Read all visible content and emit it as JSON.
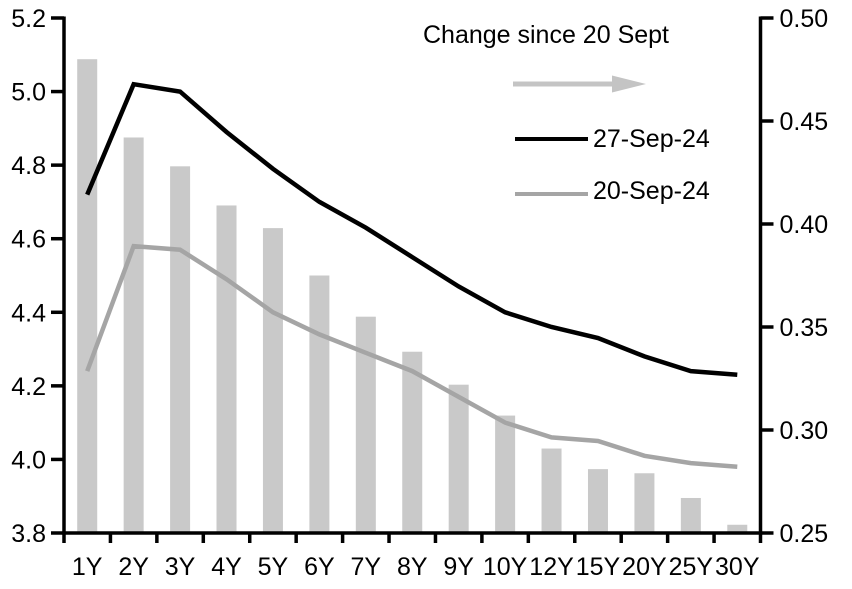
{
  "chart_data": {
    "type": "bar+line combo, dual axis",
    "categories": [
      "1Y",
      "2Y",
      "3Y",
      "4Y",
      "5Y",
      "6Y",
      "7Y",
      "8Y",
      "9Y",
      "10Y",
      "12Y",
      "15Y",
      "20Y",
      "25Y",
      "30Y"
    ],
    "series": [
      {
        "name": "Change since 20 Sept",
        "type": "bar",
        "axis": "right",
        "color": "#c9c9c9",
        "values": [
          0.48,
          0.442,
          0.428,
          0.409,
          0.398,
          0.375,
          0.355,
          0.338,
          0.322,
          0.307,
          0.291,
          0.281,
          0.279,
          0.267,
          0.254
        ]
      },
      {
        "name": "27-Sep-24",
        "type": "line",
        "axis": "left",
        "color": "#000000",
        "values": [
          4.72,
          5.02,
          5.0,
          4.89,
          4.79,
          4.7,
          4.63,
          4.55,
          4.47,
          4.4,
          4.36,
          4.33,
          4.28,
          4.24,
          4.23
        ]
      },
      {
        "name": "20-Sep-24",
        "type": "line",
        "axis": "left",
        "color": "#a5a5a5",
        "values": [
          4.24,
          4.58,
          4.57,
          4.49,
          4.4,
          4.34,
          4.29,
          4.24,
          4.17,
          4.1,
          4.06,
          4.05,
          4.01,
          3.99,
          3.98
        ]
      }
    ],
    "left_axis": {
      "min": 3.8,
      "max": 5.2,
      "tick_labels": [
        "5.2",
        "5.0",
        "4.8",
        "4.6",
        "4.4",
        "4.2",
        "4.0",
        "3.8"
      ]
    },
    "right_axis": {
      "min": 0.25,
      "max": 0.5,
      "tick_labels": [
        "0.50",
        "0.45",
        "0.40",
        "0.35",
        "0.30",
        "0.25"
      ]
    },
    "xlabel": "",
    "ylabel": "",
    "grid": false,
    "legend": {
      "position": "top-center-inside",
      "title": "Change since 20 Sept",
      "arrow_color": "#c4c4c4",
      "arrow_direction": "right",
      "entries": [
        {
          "label": "27-Sep-24",
          "color": "#000000"
        },
        {
          "label": "20-Sep-24",
          "color": "#a5a5a5"
        }
      ]
    }
  }
}
